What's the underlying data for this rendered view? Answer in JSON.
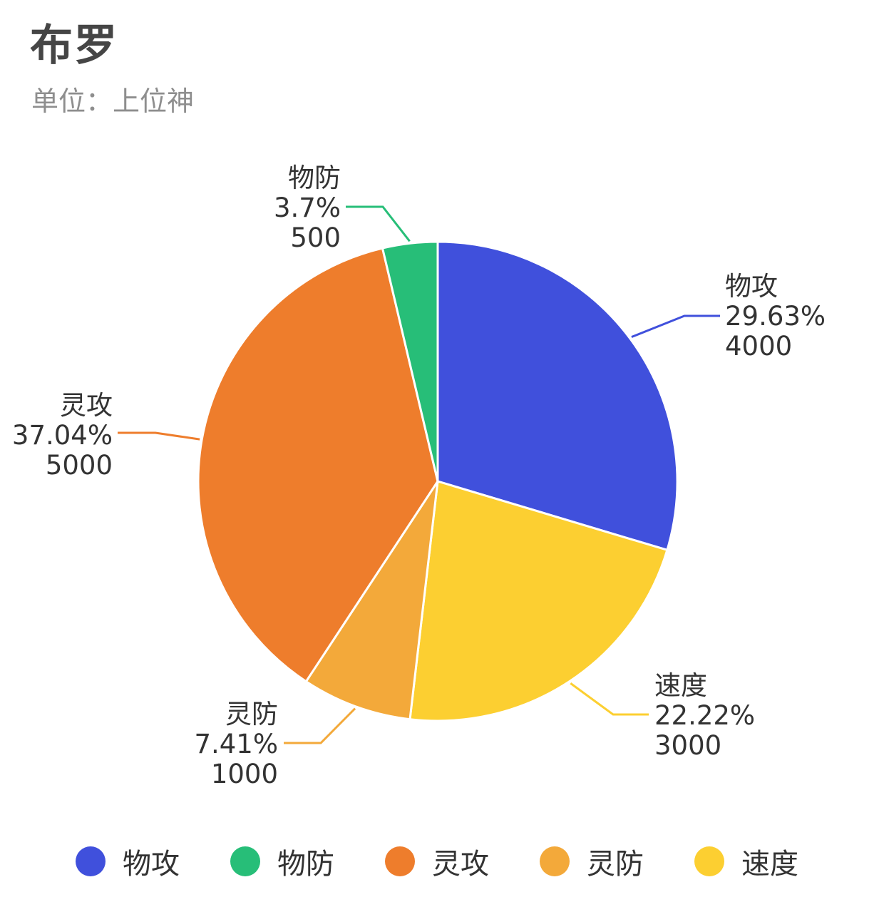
{
  "header": {
    "title": "布罗",
    "subtitle": "单位：上位神"
  },
  "chart_data": {
    "type": "pie",
    "title": "布罗",
    "subtitle": "单位：上位神",
    "start_angle_deg": 0,
    "direction": "clockwise",
    "legend_position": "bottom",
    "slices": [
      {
        "label": "物攻",
        "value": 4000,
        "percent": "29.63%",
        "color": "#4050DC"
      },
      {
        "label": "速度",
        "value": 3000,
        "percent": "22.22%",
        "color": "#FCCF31"
      },
      {
        "label": "灵防",
        "value": 1000,
        "percent": "7.41%",
        "color": "#F3A93A"
      },
      {
        "label": "灵攻",
        "value": 5000,
        "percent": "37.04%",
        "color": "#EE7D2C"
      },
      {
        "label": "物防",
        "value": 500,
        "percent": "3.7%",
        "color": "#27BE78"
      }
    ],
    "legend": [
      "物攻",
      "物防",
      "灵攻",
      "灵防",
      "速度"
    ]
  }
}
